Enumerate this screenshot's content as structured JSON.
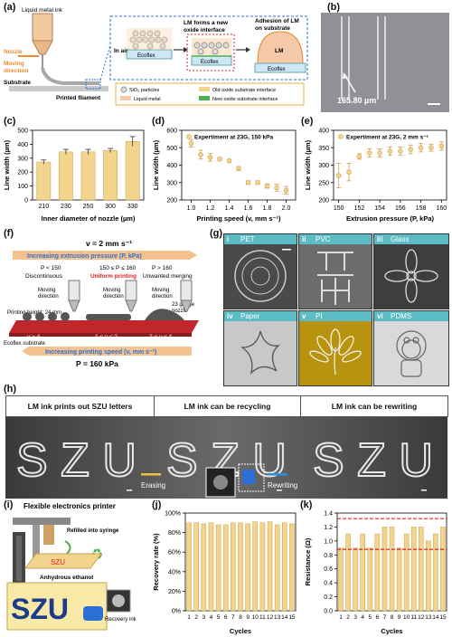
{
  "panel_labels": {
    "a": "(a)",
    "b": "(b)",
    "c": "(c)",
    "d": "(d)",
    "e": "(e)",
    "f": "(f)",
    "g": "(g)",
    "h": "(h)",
    "i": "(i)",
    "j": "(j)",
    "k": "(k)"
  },
  "a": {
    "ink": "Liquid metal ink",
    "nozzle": "Nozzle",
    "moving": "Moving",
    "direction": "direction",
    "substrate": "Substrate",
    "filament": "Printed filament",
    "in_air": "In air",
    "oxide1": "LM forms a new",
    "oxide2": "oxide interface",
    "adh1": "Adhesion of LM",
    "adh2": "on substrate",
    "lm": "LM",
    "ecoflex": "Ecoflex",
    "leg_sio2": "SiO₂ particles",
    "leg_old": "Old oxide substrate interface",
    "leg_lm": "Liquid metal",
    "leg_new": "New oxide substrate interface"
  },
  "b": {
    "measure": "165.80 µm"
  },
  "f": {
    "v_title": "v = 2 mm s⁻¹",
    "ext_arrow": "Increasing extrusion pressure (P, kPa)",
    "p1": "P < 150",
    "p2": "150 ≤ P ≤ 160",
    "p3": "P > 160",
    "s1": "Discontinuous",
    "s2": "Uniform printing",
    "s3": "Unwanted merging",
    "moving1": "Moving",
    "moving2": "direction",
    "gauge1": "23 gauge",
    "gauge2": "nozzle",
    "height": "Printing height: 24 mm",
    "eco": "Ecoflex substrate",
    "v1": "v > 4",
    "v2": "1 ≤ v ≤ 2",
    "v3": "2 < v ≤ 4",
    "speed_arrow": "Increasing printing speed (v, mm s⁻¹)",
    "p_title": "P = 160 kPa"
  },
  "g": {
    "tiles": [
      {
        "num": "i",
        "name": "PET"
      },
      {
        "num": "ii",
        "name": "PVC"
      },
      {
        "num": "iii",
        "name": "Glass"
      },
      {
        "num": "iv",
        "name": "Paper"
      },
      {
        "num": "v",
        "name": "PI"
      },
      {
        "num": "vi",
        "name": "PDMS"
      }
    ]
  },
  "h": {
    "t1": "LM ink prints out SZU letters",
    "t2": "LM ink can be recycling",
    "t3": "LM ink can be rewriting",
    "letters": "S Z U",
    "erasing": "Erasing",
    "rewriting": "Rewriting"
  },
  "i": {
    "title": "Flexible electronics printer",
    "refill": "Refilled into syringe",
    "ethanol": "Anhydrous ethanol",
    "recovery": "Recovery ink",
    "szu": "SZU"
  },
  "colors": {
    "bar": "#f3d48c",
    "bar_edge": "#c9a24a",
    "error": "#333",
    "dash": "#e02020",
    "teal": "#5bbcc6",
    "blue": "#2b6fd6",
    "orange": "#f0a24a"
  },
  "chart_data": [
    {
      "id": "c",
      "type": "bar",
      "xlabel": "Inner diameter of nozzle (µm)",
      "ylabel": "Line width (µm)",
      "categories": [
        "210",
        "230",
        "250",
        "300",
        "330"
      ],
      "values": [
        272,
        345,
        345,
        355,
        420
      ],
      "errors": [
        15,
        18,
        18,
        15,
        35
      ],
      "ylim": [
        0,
        500
      ],
      "yticks": [
        0,
        100,
        200,
        300,
        400,
        500
      ]
    },
    {
      "id": "d",
      "type": "scatter",
      "xlabel": "Printing speed (v, mm s⁻¹)",
      "ylabel": "Line width (µm)",
      "legend": "Expertiment at 23G, 150 kPa",
      "x": [
        1.0,
        1.1,
        1.2,
        1.3,
        1.4,
        1.5,
        1.6,
        1.7,
        1.8,
        1.9,
        2.0
      ],
      "y": [
        525,
        460,
        445,
        435,
        425,
        380,
        300,
        300,
        280,
        270,
        255
      ],
      "errors": [
        22,
        25,
        22,
        10,
        8,
        12,
        10,
        10,
        12,
        20,
        22
      ],
      "xlim": [
        0.9,
        2.1
      ],
      "ylim": [
        200,
        600
      ],
      "xticks": [
        "1.0",
        "1.2",
        "1.4",
        "1.6",
        "1.8",
        "2.0"
      ],
      "yticks": [
        200,
        300,
        400,
        500,
        600
      ]
    },
    {
      "id": "e",
      "type": "scatter",
      "xlabel": "Extrusion pressure (P, kPa)",
      "ylabel": "Line width (µm)",
      "legend": "Expertiment at 23G, 2 mm s⁻¹",
      "x": [
        150,
        151,
        152,
        153,
        154,
        155,
        156,
        157,
        158,
        159,
        160
      ],
      "y": [
        270,
        280,
        325,
        335,
        335,
        340,
        340,
        345,
        350,
        350,
        355
      ],
      "errors": [
        35,
        25,
        8,
        12,
        12,
        12,
        12,
        12,
        12,
        10,
        12
      ],
      "xlim": [
        149.5,
        160.5
      ],
      "ylim": [
        200,
        400
      ],
      "xticks": [
        "150",
        "152",
        "154",
        "156",
        "158",
        "160"
      ],
      "yticks": [
        200,
        250,
        300,
        350,
        400
      ]
    },
    {
      "id": "j",
      "type": "bar",
      "xlabel": "Cycles",
      "ylabel": "Recovery rate (%)",
      "categories": [
        "1",
        "2",
        "3",
        "4",
        "5",
        "6",
        "7",
        "8",
        "9",
        "10",
        "11",
        "12",
        "13",
        "14",
        "15"
      ],
      "values": [
        90,
        90,
        89,
        90,
        88,
        88,
        90,
        90,
        89,
        91,
        90,
        91,
        88,
        90,
        89
      ],
      "ylim": [
        0,
        100
      ],
      "yticks": [
        "0%",
        "20%",
        "40%",
        "60%",
        "80%",
        "100%"
      ]
    },
    {
      "id": "k",
      "type": "bar",
      "xlabel": "Cycles",
      "ylabel": "Resistance (Ω)",
      "categories": [
        "1",
        "2",
        "3",
        "4",
        "5",
        "6",
        "7",
        "8",
        "9",
        "10",
        "11",
        "12",
        "13",
        "14",
        "15"
      ],
      "values": [
        0.9,
        1.1,
        0.9,
        1.1,
        0.9,
        1.1,
        1.2,
        1.2,
        0.9,
        1.1,
        1.2,
        1.2,
        1.0,
        1.1,
        1.2
      ],
      "ylim": [
        0,
        1.4
      ],
      "yticks": [
        "0.0",
        "0.2",
        "0.4",
        "0.6",
        "0.8",
        "1.0",
        "1.2",
        "1.4"
      ],
      "reference_lines": [
        1.32,
        0.88
      ]
    }
  ]
}
